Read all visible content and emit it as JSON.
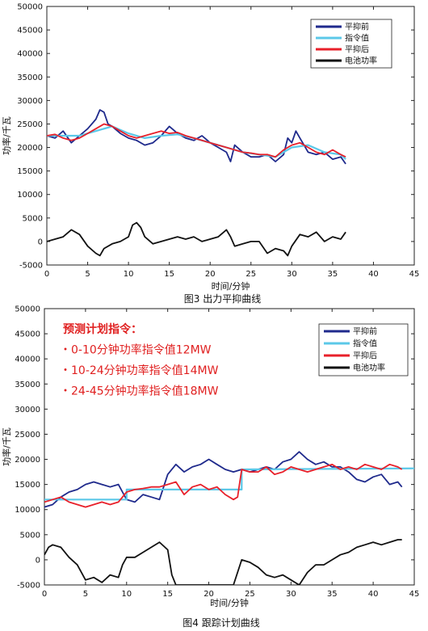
{
  "chart_data": [
    {
      "type": "line",
      "caption": "图3 出力平抑曲线",
      "xlabel": "时间/分钟",
      "ylabel": "功率/千瓦",
      "xlim": [
        0,
        45
      ],
      "ylim": [
        -5000,
        50000
      ],
      "xticks": [
        0,
        5,
        10,
        15,
        20,
        25,
        30,
        35,
        40,
        45
      ],
      "yticks": [
        -5000,
        0,
        5000,
        10000,
        15000,
        20000,
        25000,
        30000,
        35000,
        40000,
        45000,
        50000
      ],
      "grid": false,
      "legend_position": "top-right",
      "series": [
        {
          "name": "平抑前",
          "color": "#1f2a8c",
          "x": [
            0,
            1,
            2,
            3,
            4,
            5,
            6,
            6.5,
            7,
            7.5,
            8,
            9,
            10,
            11,
            12,
            13,
            14,
            15,
            16,
            17,
            18,
            19,
            20,
            21,
            22,
            22.5,
            23,
            24,
            25,
            26,
            27,
            28,
            29,
            29.5,
            30,
            30.5,
            31,
            32,
            33,
            34,
            35,
            36,
            36.6
          ],
          "y": [
            22500,
            22000,
            23500,
            21000,
            22500,
            24000,
            26000,
            28000,
            27500,
            25000,
            24500,
            23000,
            22000,
            21500,
            20500,
            21000,
            22500,
            24500,
            23000,
            22000,
            21500,
            22500,
            21000,
            20000,
            19000,
            17000,
            20500,
            19000,
            18000,
            18000,
            18500,
            17000,
            18500,
            22000,
            21000,
            23500,
            22000,
            19000,
            18500,
            19000,
            17500,
            18000,
            16500
          ]
        },
        {
          "name": "指令值",
          "color": "#5bc8e8",
          "x": [
            0,
            2,
            4,
            6,
            8,
            10,
            12,
            14,
            16,
            18,
            20,
            22,
            24,
            26,
            28,
            30,
            32,
            34,
            36,
            36.6
          ],
          "y": [
            22500,
            22500,
            22500,
            23500,
            24500,
            23000,
            22000,
            22500,
            22800,
            22000,
            21000,
            20000,
            19000,
            18500,
            18000,
            20000,
            20500,
            19000,
            18500,
            17500
          ]
        },
        {
          "name": "平抑后",
          "color": "#e8202a",
          "x": [
            0,
            1,
            2,
            3,
            4,
            5,
            6,
            7,
            8,
            9,
            10,
            11,
            12,
            13,
            14,
            15,
            16,
            17,
            18,
            19,
            20,
            21,
            22,
            23,
            24,
            25,
            26,
            27,
            28,
            29,
            30,
            31,
            32,
            33,
            34,
            35,
            36,
            36.6
          ],
          "y": [
            22500,
            22800,
            22000,
            21500,
            22000,
            23000,
            24000,
            25000,
            24500,
            23500,
            22500,
            22000,
            22500,
            23000,
            23500,
            23000,
            23200,
            22500,
            22000,
            21500,
            21000,
            20500,
            20000,
            19500,
            19000,
            18800,
            18500,
            18500,
            18000,
            19500,
            20500,
            21000,
            20000,
            19000,
            18500,
            19500,
            18500,
            18000
          ]
        },
        {
          "name": "电池功率",
          "color": "#111111",
          "x": [
            0,
            1,
            2,
            3,
            4,
            5,
            6,
            6.5,
            7,
            8,
            9,
            10,
            10.5,
            11,
            11.5,
            12,
            13,
            14,
            15,
            16,
            17,
            18,
            19,
            20,
            21,
            22,
            22.5,
            23,
            24,
            25,
            26,
            27,
            28,
            29,
            29.5,
            30,
            31,
            32,
            33,
            34,
            35,
            36,
            36.6
          ],
          "y": [
            0,
            500,
            1000,
            2500,
            1500,
            -1000,
            -2500,
            -3000,
            -1500,
            -500,
            0,
            1000,
            3500,
            4000,
            3000,
            1000,
            -500,
            0,
            500,
            1000,
            500,
            1000,
            0,
            500,
            1000,
            2500,
            1000,
            -1000,
            -500,
            0,
            0,
            -2500,
            -1500,
            -2000,
            -3000,
            -1000,
            1500,
            1000,
            2000,
            0,
            1000,
            500,
            2000
          ]
        }
      ]
    },
    {
      "type": "line",
      "caption": "图4 跟踪计划曲线",
      "xlabel": "时间/分钟",
      "ylabel": "功率/千瓦",
      "xlim": [
        0,
        45
      ],
      "ylim": [
        -5000,
        50000
      ],
      "xticks": [
        0,
        5,
        10,
        15,
        20,
        25,
        30,
        35,
        40,
        45
      ],
      "yticks": [
        -5000,
        0,
        5000,
        10000,
        15000,
        20000,
        25000,
        30000,
        35000,
        40000,
        45000,
        50000
      ],
      "grid": false,
      "legend_position": "top-right",
      "annotation": {
        "title": "预测计划指令：",
        "lines": [
          "・0-10分钟功率指令值12MW",
          "・10-24分钟功率指令值14MW",
          "・24-45分钟功率指令值18MW"
        ]
      },
      "series": [
        {
          "name": "平抑前",
          "color": "#1f2a8c",
          "x": [
            0,
            1,
            2,
            3,
            4,
            5,
            6,
            7,
            8,
            9,
            9.5,
            10,
            11,
            12,
            13,
            14,
            15,
            16,
            17,
            18,
            19,
            20,
            21,
            22,
            23,
            24,
            25,
            26,
            27,
            28,
            29,
            30,
            31,
            32,
            33,
            34,
            35,
            36,
            37,
            38,
            39,
            40,
            41,
            42,
            43,
            43.5
          ],
          "y": [
            10500,
            11000,
            12500,
            13500,
            14000,
            15000,
            15500,
            15000,
            14500,
            15000,
            13500,
            12000,
            11500,
            13000,
            12500,
            12000,
            17000,
            19000,
            17500,
            18500,
            19000,
            20000,
            19000,
            18000,
            17500,
            18000,
            17500,
            18000,
            18500,
            18000,
            19500,
            20000,
            21500,
            20000,
            19000,
            19500,
            18500,
            18500,
            17500,
            16000,
            15500,
            16500,
            17000,
            15000,
            15500,
            14500
          ]
        },
        {
          "name": "指令值",
          "color": "#5bc8e8",
          "x": [
            0,
            10,
            10,
            24,
            24,
            45
          ],
          "y": [
            12000,
            12000,
            14000,
            14000,
            18000,
            18200
          ]
        },
        {
          "name": "平抑后",
          "color": "#e8202a",
          "x": [
            0,
            1,
            2,
            3,
            4,
            5,
            6,
            7,
            8,
            9,
            10,
            11,
            12,
            13,
            14,
            15,
            16,
            17,
            18,
            19,
            20,
            21,
            22,
            23,
            23.5,
            24,
            25,
            26,
            27,
            28,
            29,
            30,
            31,
            32,
            33,
            34,
            35,
            36,
            37,
            38,
            39,
            40,
            41,
            42,
            43,
            43.5
          ],
          "y": [
            11500,
            12000,
            12500,
            11500,
            11000,
            10500,
            11000,
            11500,
            11000,
            11500,
            13500,
            14000,
            14200,
            14500,
            14500,
            15000,
            15500,
            13000,
            14500,
            15000,
            14000,
            14500,
            13000,
            12000,
            12500,
            18000,
            17500,
            17500,
            18500,
            17000,
            17500,
            18500,
            18000,
            17500,
            18000,
            18500,
            19000,
            18000,
            18500,
            18000,
            19000,
            18500,
            18000,
            19000,
            18500,
            18000
          ]
        },
        {
          "name": "电池功率",
          "color": "#111111",
          "x": [
            0,
            0.5,
            1,
            2,
            3,
            4,
            5,
            6,
            7,
            8,
            9,
            9.5,
            10,
            11,
            12,
            13,
            14,
            15,
            15.5,
            16,
            17,
            18,
            19,
            20,
            21,
            22,
            23,
            24,
            25,
            26,
            27,
            28,
            29,
            30,
            31,
            32,
            33,
            34,
            35,
            36,
            37,
            38,
            39,
            40,
            41,
            42,
            43,
            43.5
          ],
          "y": [
            1000,
            2500,
            3000,
            2500,
            500,
            -1000,
            -4000,
            -3500,
            -4500,
            -3000,
            -3500,
            -1000,
            500,
            500,
            1500,
            2500,
            3500,
            2000,
            -3000,
            -5000,
            -5000,
            -5000,
            -5000,
            -5000,
            -5000,
            -5000,
            -5000,
            0,
            -500,
            -1500,
            -3000,
            -3500,
            -3000,
            -4000,
            -5000,
            -2500,
            -1000,
            -1000,
            0,
            1000,
            1500,
            2500,
            3000,
            3500,
            3000,
            3500,
            4000,
            4000
          ]
        }
      ]
    }
  ]
}
